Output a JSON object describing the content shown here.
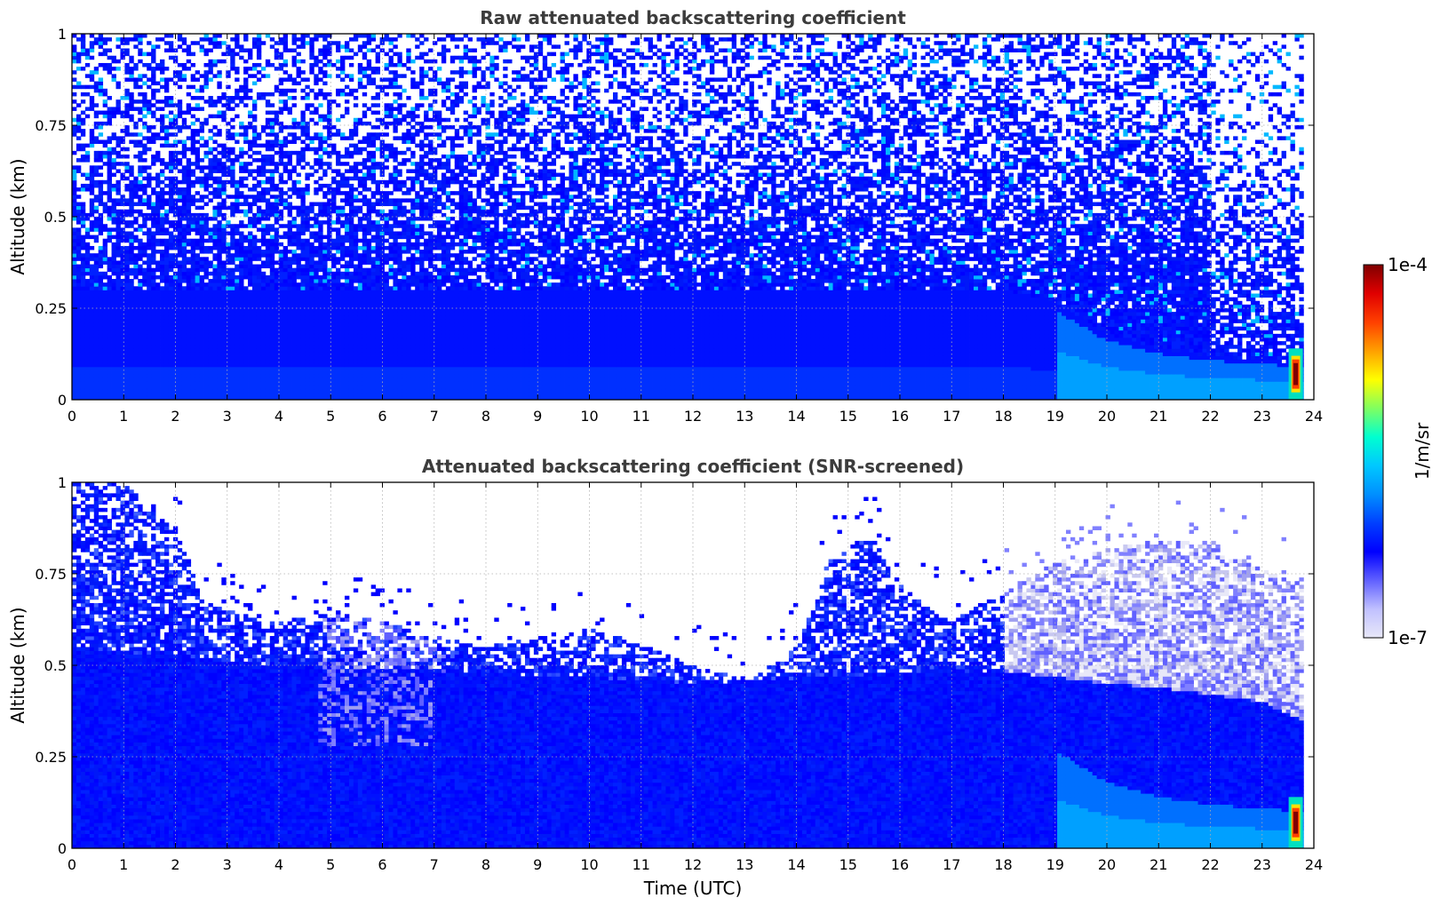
{
  "chart_data": [
    {
      "type": "heatmap",
      "title": "Raw attenuated backscattering coefficient",
      "xlabel": "",
      "ylabel": "Altitude (km)",
      "xlim": [
        0,
        24
      ],
      "ylim": [
        0,
        1
      ],
      "xticks": [
        "0",
        "1",
        "2",
        "3",
        "4",
        "5",
        "6",
        "7",
        "8",
        "9",
        "10",
        "11",
        "12",
        "13",
        "14",
        "15",
        "16",
        "17",
        "18",
        "19",
        "20",
        "21",
        "22",
        "23",
        "24"
      ],
      "yticks": [
        "0",
        "0.25",
        "0.5",
        "0.75",
        "1"
      ],
      "grid": true,
      "data_end_time": 23.8,
      "boundary_layer_top_km": [
        [
          0,
          0.3
        ],
        [
          4,
          0.3
        ],
        [
          8,
          0.3
        ],
        [
          12,
          0.3
        ],
        [
          16,
          0.3
        ],
        [
          18,
          0.3
        ],
        [
          19,
          0.27
        ],
        [
          20,
          0.18
        ],
        [
          21,
          0.14
        ],
        [
          22,
          0.12
        ],
        [
          23.8,
          0.1
        ]
      ],
      "noise_onset_km": 0.25,
      "strong_signal_event": {
        "time": 23.65,
        "altitude_range_km": [
          0.02,
          0.12
        ],
        "max_value": "1e-4"
      },
      "colorscale": [
        "#e8e8f8",
        "#0000ff",
        "#00b4ff",
        "#00ffcc",
        "#ffff00",
        "#ff6600",
        "#800000"
      ]
    },
    {
      "type": "heatmap",
      "title": "Attenuated backscattering coefficient (SNR-screened)",
      "xlabel": "Time (UTC)",
      "ylabel": "Altitude (km)",
      "xlim": [
        0,
        24
      ],
      "ylim": [
        0,
        1
      ],
      "xticks": [
        "0",
        "1",
        "2",
        "3",
        "4",
        "5",
        "6",
        "7",
        "8",
        "9",
        "10",
        "11",
        "12",
        "13",
        "14",
        "15",
        "16",
        "17",
        "18",
        "19",
        "20",
        "21",
        "22",
        "23",
        "24"
      ],
      "yticks": [
        "0",
        "0.25",
        "0.5",
        "0.75",
        "1"
      ],
      "grid": true,
      "data_end_time": 23.8,
      "screened_top_km": [
        [
          0,
          1.0
        ],
        [
          1,
          1.0
        ],
        [
          2,
          0.88
        ],
        [
          2.5,
          0.68
        ],
        [
          3,
          0.65
        ],
        [
          4,
          0.62
        ],
        [
          5,
          0.64
        ],
        [
          6,
          0.62
        ],
        [
          7,
          0.58
        ],
        [
          8,
          0.55
        ],
        [
          9,
          0.58
        ],
        [
          10,
          0.6
        ],
        [
          11,
          0.56
        ],
        [
          12,
          0.5
        ],
        [
          13,
          0.46
        ],
        [
          14,
          0.55
        ],
        [
          14.6,
          0.78
        ],
        [
          15,
          0.82
        ],
        [
          15.5,
          0.85
        ],
        [
          16,
          0.72
        ],
        [
          17,
          0.62
        ],
        [
          18,
          0.7
        ],
        [
          19,
          0.78
        ],
        [
          20,
          0.82
        ],
        [
          21,
          0.84
        ],
        [
          22,
          0.84
        ],
        [
          23,
          0.76
        ],
        [
          23.8,
          0.72
        ]
      ],
      "aerosol_layer_bottom_km": [
        [
          0,
          0.55
        ],
        [
          4,
          0.5
        ],
        [
          8,
          0.48
        ],
        [
          12,
          0.45
        ],
        [
          16,
          0.48
        ],
        [
          18,
          0.48
        ],
        [
          19,
          0.47
        ],
        [
          20,
          0.45
        ],
        [
          21,
          0.44
        ],
        [
          22,
          0.42
        ],
        [
          23,
          0.4
        ],
        [
          23.8,
          0.35
        ]
      ],
      "strong_signal_event": {
        "time": 23.65,
        "altitude_range_km": [
          0.02,
          0.12
        ],
        "max_value": "1e-4"
      },
      "colorscale": [
        "#e8e8f8",
        "#0000ff",
        "#00b4ff",
        "#00ffcc",
        "#ffff00",
        "#ff6600",
        "#800000"
      ]
    }
  ],
  "colorbar": {
    "label": "1/m/sr",
    "max_label": "1e-4",
    "min_label": "1e-7",
    "stops": [
      "#e8e8f8",
      "#c0c0ff",
      "#6060ff",
      "#0000ff",
      "#0040ff",
      "#0090ff",
      "#00c8ff",
      "#00ffd0",
      "#80ff60",
      "#ffff00",
      "#ffa000",
      "#ff4000",
      "#e00000",
      "#800000"
    ]
  }
}
